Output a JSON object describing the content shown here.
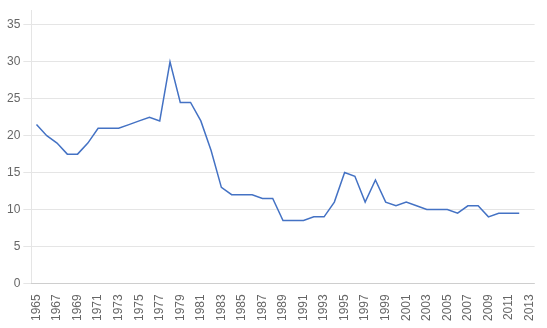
{
  "chart_data": {
    "type": "line",
    "x": [
      1965,
      1966,
      1967,
      1968,
      1969,
      1970,
      1971,
      1972,
      1973,
      1974,
      1975,
      1976,
      1977,
      1978,
      1979,
      1980,
      1981,
      1982,
      1983,
      1984,
      1985,
      1986,
      1987,
      1988,
      1989,
      1990,
      1991,
      1992,
      1993,
      1994,
      1995,
      1996,
      1997,
      1998,
      1999,
      2000,
      2001,
      2002,
      2003,
      2004,
      2005,
      2006,
      2007,
      2008,
      2009,
      2010,
      2011,
      2012
    ],
    "values": [
      21.5,
      20.0,
      19.0,
      17.5,
      17.5,
      19.0,
      21.0,
      21.0,
      21.0,
      21.5,
      22.0,
      22.5,
      22.0,
      30.0,
      24.5,
      24.5,
      22.0,
      18.0,
      13.0,
      12.0,
      12.0,
      12.0,
      11.5,
      11.5,
      8.5,
      8.5,
      8.5,
      9.0,
      9.0,
      11.0,
      15.0,
      14.5,
      11.0,
      14.0,
      11.0,
      10.5,
      11.0,
      10.5,
      10.0,
      10.0,
      10.0,
      9.5,
      10.5,
      10.5,
      9.0,
      9.5,
      9.5,
      9.5
    ],
    "color": "#4472c4",
    "xlim": [
      1964.5,
      2013.5
    ],
    "xticks": [
      1965,
      1967,
      1969,
      1971,
      1973,
      1975,
      1977,
      1979,
      1981,
      1983,
      1985,
      1987,
      1989,
      1991,
      1993,
      1995,
      1997,
      1999,
      2001,
      2003,
      2005,
      2007,
      2009,
      2011,
      2013
    ],
    "ylim": [
      0,
      37
    ],
    "yticks": [
      0,
      5,
      10,
      15,
      20,
      25,
      30,
      35
    ],
    "grid": "y"
  }
}
